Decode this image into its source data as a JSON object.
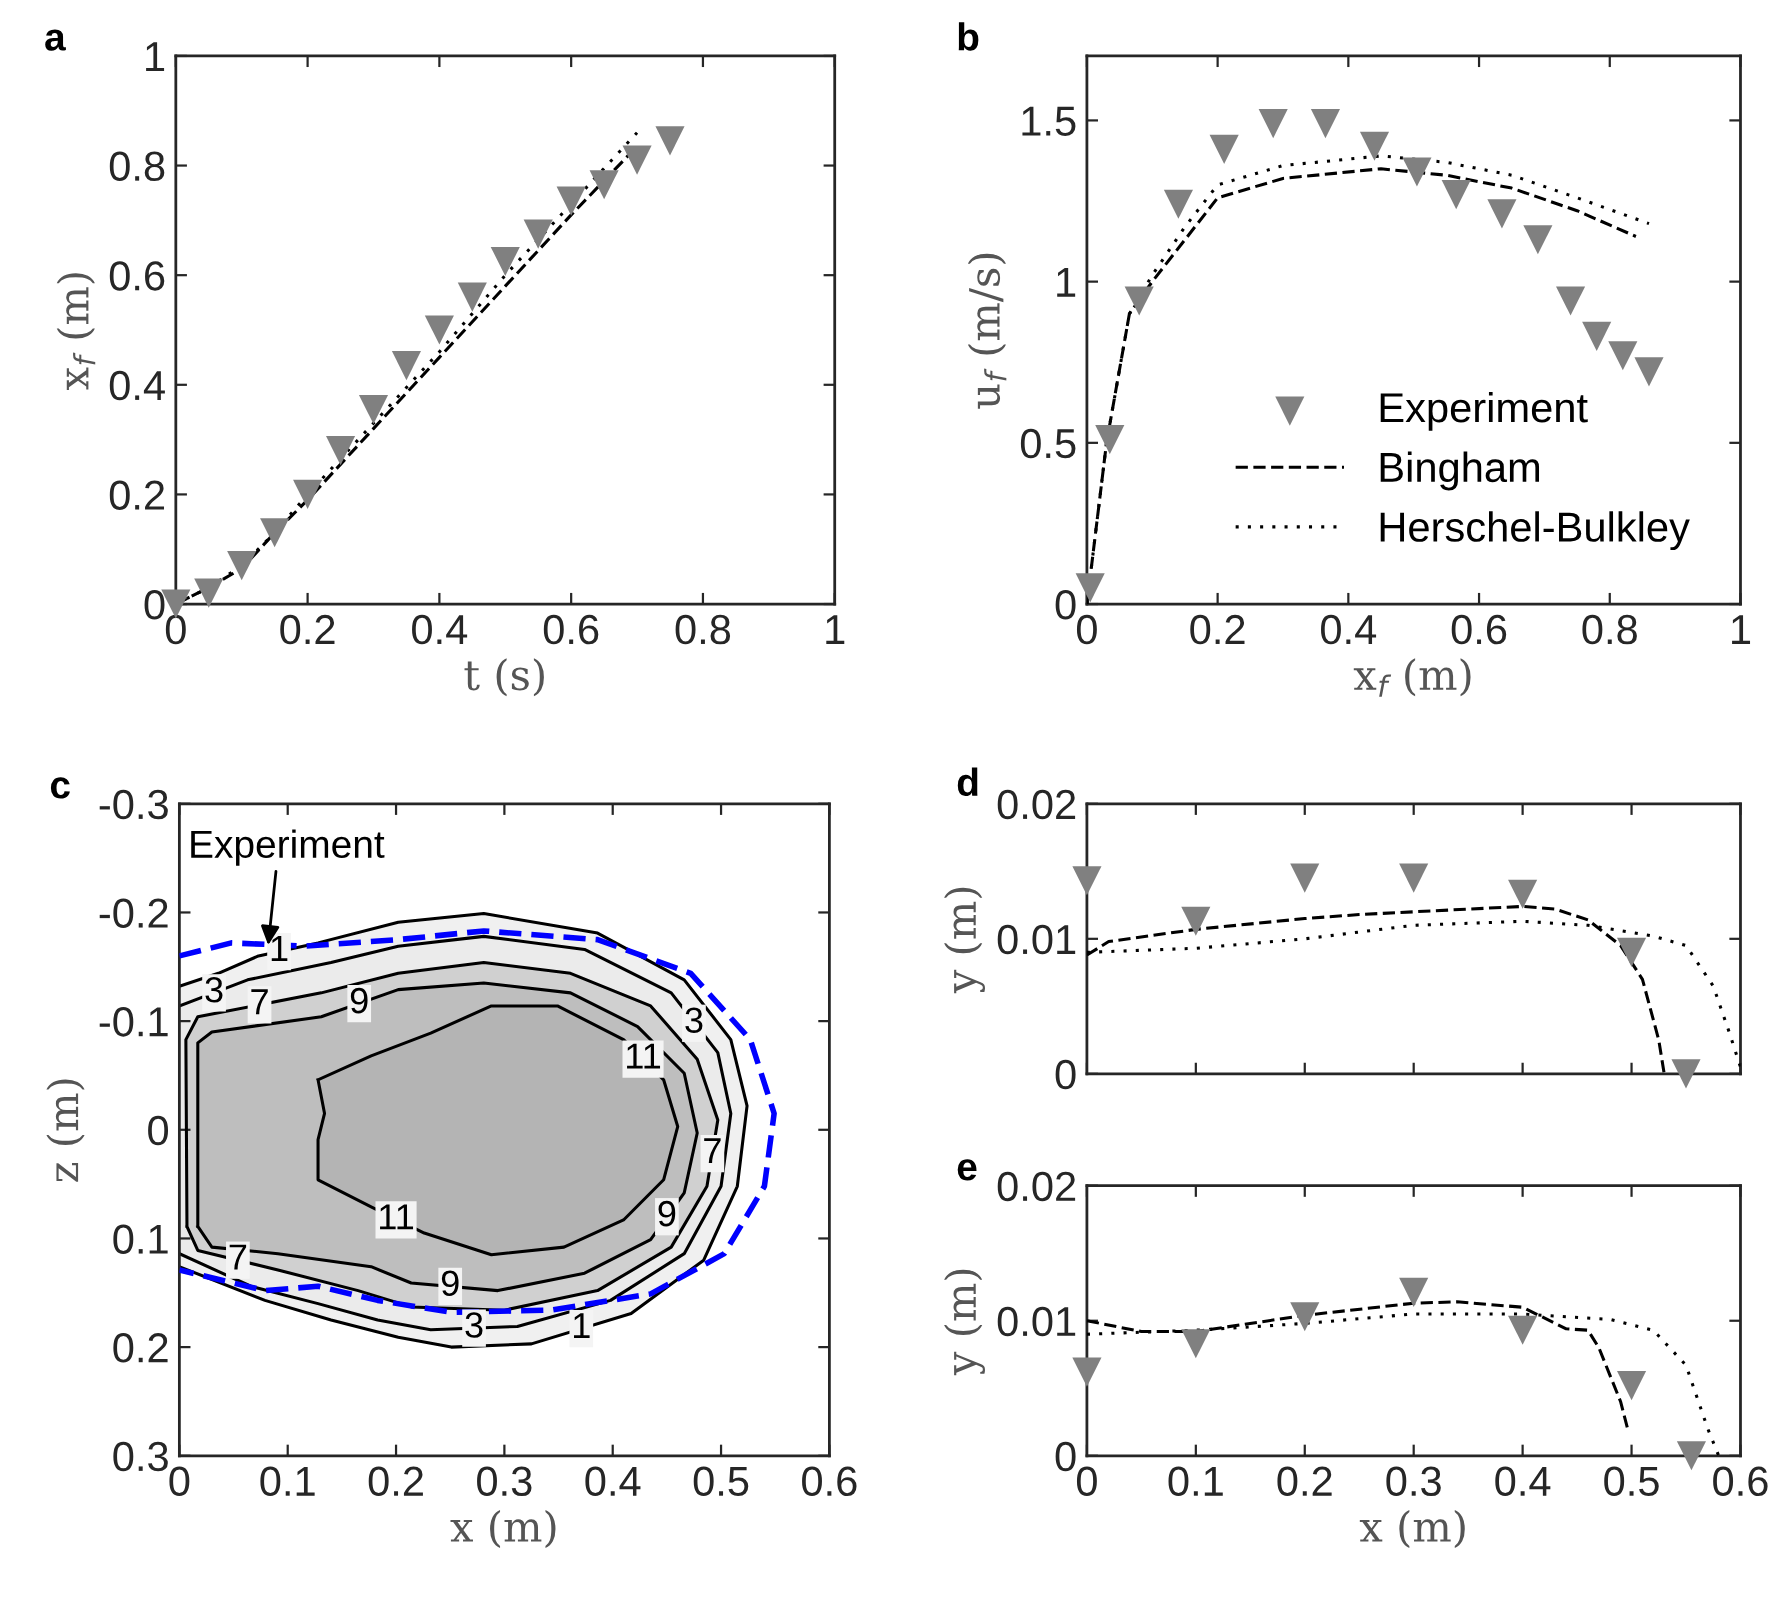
{
  "chart_data": [
    {
      "type": "line",
      "title": "a",
      "xlabel": "t (s)",
      "ylabel": "x$_{f}$ (m)",
      "xlim": [
        0,
        1
      ],
      "ylim": [
        0,
        1
      ],
      "xticks": [
        0,
        0.2,
        0.4,
        0.6,
        0.8,
        1
      ],
      "yticks": [
        0,
        0.2,
        0.4,
        0.6,
        0.8,
        1
      ],
      "grid": false,
      "legend": false,
      "series": [
        {
          "type": "scatter",
          "marker": "triangle",
          "color": "#808080",
          "x": [
            0,
            0.05,
            0.1,
            0.15,
            0.2,
            0.25,
            0.3,
            0.35,
            0.4,
            0.45,
            0.5,
            0.55,
            0.6,
            0.65,
            0.7,
            0.75
          ],
          "values": [
            0,
            0.02,
            0.07,
            0.13,
            0.2,
            0.28,
            0.355,
            0.435,
            0.5,
            0.56,
            0.625,
            0.675,
            0.735,
            0.765,
            0.81,
            0.845
          ]
        },
        {
          "type": "line",
          "line_style": "dashed",
          "color": "#000000",
          "x": [
            0,
            0.05,
            0.1,
            0.15,
            0.2,
            0.3,
            0.4,
            0.5,
            0.6,
            0.7
          ],
          "values": [
            0,
            0.03,
            0.065,
            0.13,
            0.19,
            0.32,
            0.45,
            0.58,
            0.71,
            0.835
          ]
        },
        {
          "type": "line",
          "line_style": "dotted",
          "color": "#000000",
          "x": [
            0,
            0.05,
            0.1,
            0.15,
            0.2,
            0.3,
            0.4,
            0.5,
            0.6,
            0.7
          ],
          "values": [
            0,
            0.03,
            0.07,
            0.13,
            0.2,
            0.33,
            0.46,
            0.6,
            0.73,
            0.86
          ]
        }
      ]
    },
    {
      "type": "line",
      "title": "b",
      "xlabel": "x$_{f}$ (m)",
      "ylabel": "u$_{f}$ (m/s)",
      "xlim": [
        0,
        1
      ],
      "ylim": [
        0,
        1.7
      ],
      "xticks": [
        0,
        0.2,
        0.4,
        0.6,
        0.8,
        1
      ],
      "yticks": [
        0,
        0.5,
        1,
        1.5
      ],
      "grid": false,
      "legend": "bottom right",
      "series": [
        {
          "type": "scatter",
          "name": "Experiment",
          "marker": "triangle",
          "color": "#808080",
          "x": [
            0.005,
            0.035,
            0.08,
            0.14,
            0.21,
            0.285,
            0.365,
            0.44,
            0.505,
            0.565,
            0.635,
            0.69,
            0.74,
            0.78,
            0.82,
            0.86
          ],
          "values": [
            0.05,
            0.51,
            0.94,
            1.24,
            1.41,
            1.49,
            1.49,
            1.42,
            1.34,
            1.27,
            1.21,
            1.13,
            0.94,
            0.83,
            0.77,
            0.72
          ]
        },
        {
          "type": "line",
          "name": "Bingham",
          "line_style": "dashed",
          "color": "#000000",
          "x": [
            0,
            0.03,
            0.065,
            0.1,
            0.15,
            0.2,
            0.3,
            0.45,
            0.55,
            0.65,
            0.75,
            0.84
          ],
          "values": [
            0,
            0.5,
            0.9,
            1.0,
            1.13,
            1.26,
            1.32,
            1.35,
            1.33,
            1.29,
            1.22,
            1.14
          ]
        },
        {
          "type": "line",
          "name": "Herschel-Bulkley",
          "line_style": "dotted",
          "color": "#000000",
          "x": [
            0,
            0.03,
            0.065,
            0.1,
            0.15,
            0.2,
            0.3,
            0.45,
            0.55,
            0.65,
            0.75,
            0.86
          ],
          "values": [
            0,
            0.5,
            0.9,
            1.02,
            1.17,
            1.3,
            1.36,
            1.39,
            1.37,
            1.33,
            1.26,
            1.18
          ]
        }
      ]
    },
    {
      "type": "line",
      "title": "c",
      "xlabel": "x (m)",
      "ylabel": "z (m)",
      "xlim": [
        0,
        0.6
      ],
      "ylim": [
        0.3,
        -0.3
      ],
      "xticks": [
        0,
        0.1,
        0.2,
        0.3,
        0.4,
        0.5,
        0.6
      ],
      "yticks": [
        -0.3,
        -0.2,
        -0.1,
        0,
        0.1,
        0.2,
        0.3
      ],
      "grid": false,
      "legend": false,
      "series": [
        {
          "type": "area",
          "color": "#f0f0f0",
          "x": [
            0,
            0.036,
            0.073,
            0.128,
            0.202,
            0.281,
            0.386,
            0.466,
            0.509,
            0.524,
            0.515,
            0.484,
            0.417,
            0.325,
            0.251,
            0.202,
            0.14,
            0.079,
            0
          ],
          "values": [
            -0.132,
            -0.144,
            -0.16,
            -0.172,
            -0.191,
            -0.199,
            -0.181,
            -0.138,
            -0.083,
            -0.022,
            0.052,
            0.12,
            0.169,
            0.197,
            0.2,
            0.191,
            0.175,
            0.157,
            0.126
          ]
        },
        {
          "type": "area",
          "color": "#ebebeb",
          "x": [
            0,
            0.063,
            0.14,
            0.202,
            0.281,
            0.374,
            0.454,
            0.497,
            0.509,
            0.5,
            0.466,
            0.398,
            0.312,
            0.232,
            0.183,
            0.128,
            0.066,
            0
          ],
          "values": [
            -0.114,
            -0.138,
            -0.154,
            -0.169,
            -0.178,
            -0.166,
            -0.126,
            -0.071,
            -0.015,
            0.052,
            0.114,
            0.157,
            0.181,
            0.184,
            0.175,
            0.16,
            0.144,
            0.114
          ]
        },
        {
          "type": "area",
          "color": "#d0d0d0",
          "x": [
            0.007,
            0.006,
            0.017,
            0.131,
            0.202,
            0.281,
            0.361,
            0.435,
            0.478,
            0.497,
            0.487,
            0.454,
            0.386,
            0.3,
            0.214,
            0.165,
            0.091,
            0.017,
            0.007
          ],
          "values": [
            0.089,
            -0.083,
            -0.104,
            -0.126,
            -0.144,
            -0.154,
            -0.144,
            -0.114,
            -0.065,
            -0.009,
            0.052,
            0.108,
            0.148,
            0.166,
            0.163,
            0.148,
            0.129,
            0.111,
            0.089
          ]
        },
        {
          "type": "area",
          "color": "#bebebe",
          "x": [
            0.017,
            0.017,
            0.03,
            0.131,
            0.202,
            0.281,
            0.361,
            0.423,
            0.466,
            0.478,
            0.466,
            0.435,
            0.374,
            0.294,
            0.214,
            0.177,
            0.091,
            0.03,
            0.017
          ],
          "values": [
            0.089,
            -0.08,
            -0.09,
            -0.104,
            -0.129,
            -0.135,
            -0.126,
            -0.095,
            -0.052,
            0.003,
            0.058,
            0.101,
            0.132,
            0.148,
            0.141,
            0.126,
            0.114,
            0.108,
            0.089
          ]
        },
        {
          "type": "area",
          "color": "#b4b4b4",
          "x": [
            0.128,
            0.177,
            0.232,
            0.288,
            0.349,
            0.41,
            0.447,
            0.46,
            0.447,
            0.41,
            0.355,
            0.288,
            0.226,
            0.177,
            0.128,
            0.128,
            0.134,
            0.128
          ],
          "values": [
            -0.046,
            -0.068,
            -0.089,
            -0.114,
            -0.114,
            -0.083,
            -0.046,
            -0.003,
            0.046,
            0.083,
            0.108,
            0.115,
            0.095,
            0.071,
            0.046,
            0.009,
            -0.015,
            -0.046
          ]
        },
        {
          "type": "line",
          "line_style": "dashed",
          "color": "#0000ff",
          "x": [
            0,
            0.048,
            0.116,
            0.202,
            0.281,
            0.386,
            0.472,
            0.527,
            0.549,
            0.54,
            0.503,
            0.435,
            0.343,
            0.251,
            0.183,
            0.128,
            0.079,
            0
          ],
          "values": [
            -0.16,
            -0.172,
            -0.169,
            -0.175,
            -0.183,
            -0.175,
            -0.144,
            -0.083,
            -0.015,
            0.052,
            0.114,
            0.151,
            0.166,
            0.168,
            0.157,
            0.144,
            0.148,
            0.129
          ]
        }
      ],
      "annotations": [
        {
          "text": "1",
          "x": 0.092,
          "y": -0.164
        },
        {
          "text": "3",
          "x": 0.032,
          "y": -0.126
        },
        {
          "text": "7",
          "x": 0.074,
          "y": -0.115
        },
        {
          "text": "9",
          "x": 0.166,
          "y": -0.116
        },
        {
          "text": "11",
          "x": 0.428,
          "y": -0.065
        },
        {
          "text": "3",
          "x": 0.475,
          "y": -0.098
        },
        {
          "text": "7",
          "x": 0.492,
          "y": 0.022
        },
        {
          "text": "9",
          "x": 0.45,
          "y": 0.08
        },
        {
          "text": "11",
          "x": 0.2,
          "y": 0.083
        },
        {
          "text": "9",
          "x": 0.25,
          "y": 0.144
        },
        {
          "text": "7",
          "x": 0.054,
          "y": 0.12
        },
        {
          "text": "3",
          "x": 0.272,
          "y": 0.1825
        },
        {
          "text": "1",
          "x": 0.371,
          "y": 0.183
        },
        {
          "text": "Experiment",
          "x": 0.082,
          "y": -0.17
        }
      ]
    },
    {
      "type": "line",
      "title": "d",
      "ylabel": "y (m)",
      "xlim": [
        0,
        0.6
      ],
      "ylim": [
        0,
        0.02
      ],
      "xticks": [
        0,
        0.1,
        0.2,
        0.3,
        0.4,
        0.5,
        0.6
      ],
      "yticks": [
        0,
        0.01,
        0.02
      ],
      "tick_labels": "y",
      "grid": false,
      "legend": false,
      "series": [
        {
          "type": "scatter",
          "marker": "triangle",
          "color": "#808080",
          "x": [
            0,
            0.1,
            0.2,
            0.3,
            0.4,
            0.5,
            0.55
          ],
          "values": [
            0.0143,
            0.0113,
            0.0145,
            0.0145,
            0.0133,
            0.009,
            0
          ]
        },
        {
          "type": "line",
          "line_style": "dashed",
          "color": "#000000",
          "x": [
            0,
            0.02,
            0.1,
            0.2,
            0.25,
            0.3,
            0.4,
            0.43,
            0.46,
            0.49,
            0.51,
            0.525,
            0.53
          ],
          "values": [
            0.0088,
            0.0098,
            0.0107,
            0.0115,
            0.0118,
            0.012,
            0.0124,
            0.0122,
            0.0114,
            0.0095,
            0.007,
            0.0025,
            0
          ]
        },
        {
          "type": "line",
          "line_style": "dotted",
          "color": "#000000",
          "x": [
            0,
            0.1,
            0.2,
            0.3,
            0.4,
            0.46,
            0.52,
            0.55,
            0.575,
            0.59,
            0.6
          ],
          "values": [
            0.009,
            0.0093,
            0.01,
            0.011,
            0.0113,
            0.011,
            0.0102,
            0.0095,
            0.0065,
            0.003,
            0.0005
          ]
        }
      ]
    },
    {
      "type": "line",
      "title": "e",
      "xlabel": "x (m)",
      "ylabel": "y (m)",
      "xlim": [
        0,
        0.6
      ],
      "ylim": [
        0,
        0.02
      ],
      "xticks": [
        0,
        0.1,
        0.2,
        0.3,
        0.4,
        0.5,
        0.6
      ],
      "yticks": [
        0,
        0.01,
        0.02
      ],
      "grid": false,
      "legend": false,
      "series": [
        {
          "type": "scatter",
          "marker": "triangle",
          "color": "#808080",
          "x": [
            0,
            0.1,
            0.2,
            0.3,
            0.4,
            0.5,
            0.555
          ],
          "values": [
            0.0062,
            0.0083,
            0.0103,
            0.0121,
            0.0093,
            0.0052,
            0
          ]
        },
        {
          "type": "line",
          "line_style": "dashed",
          "color": "#000000",
          "x": [
            0,
            0.05,
            0.1,
            0.2,
            0.3,
            0.34,
            0.4,
            0.44,
            0.46,
            0.47,
            0.49,
            0.497
          ],
          "values": [
            0.01,
            0.0092,
            0.0092,
            0.0104,
            0.0113,
            0.0114,
            0.011,
            0.0094,
            0.0093,
            0.008,
            0.004,
            0.0018
          ]
        },
        {
          "type": "line",
          "line_style": "dotted",
          "color": "#000000",
          "x": [
            0,
            0.1,
            0.2,
            0.3,
            0.4,
            0.48,
            0.52,
            0.55,
            0.57,
            0.58
          ],
          "values": [
            0.009,
            0.0093,
            0.0098,
            0.0105,
            0.0105,
            0.0101,
            0.0093,
            0.0067,
            0.002,
            0
          ]
        }
      ]
    }
  ]
}
